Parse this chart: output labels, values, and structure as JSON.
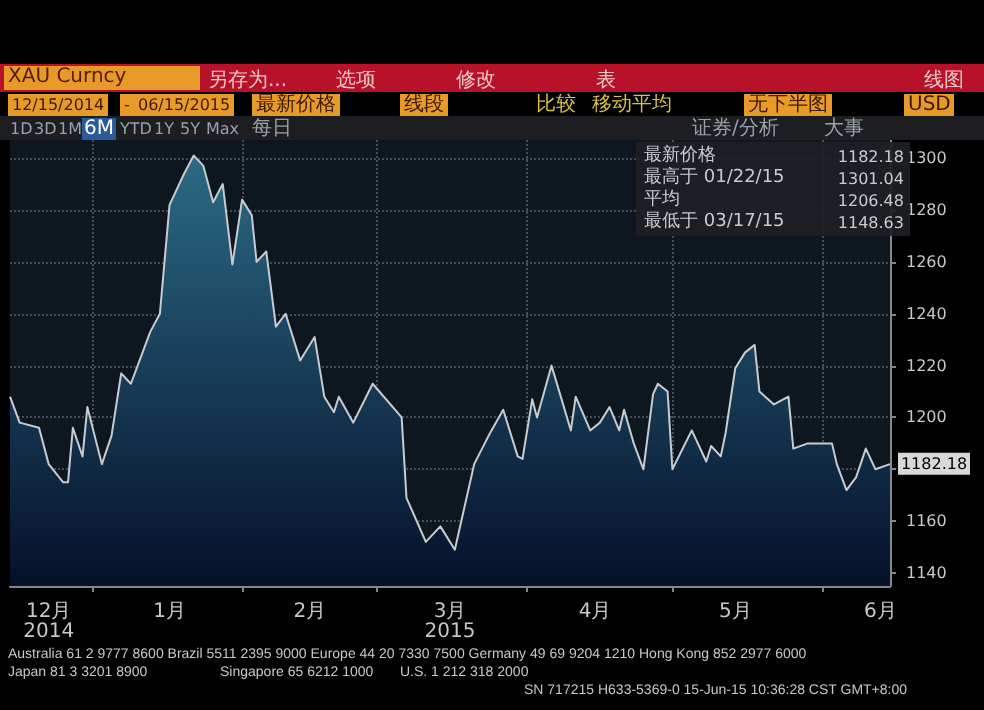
{
  "chart_data": {
    "type": "area",
    "title": "XAU Curncy",
    "x": [
      "2014-12-15",
      "2014-12-17",
      "2014-12-21",
      "2014-12-23",
      "2014-12-26",
      "2014-12-27",
      "2014-12-28",
      "2014-12-30",
      "2014-12-31",
      "2015-01-03",
      "2015-01-05",
      "2015-01-07",
      "2015-01-09",
      "2015-01-11",
      "2015-01-13",
      "2015-01-15",
      "2015-01-17",
      "2015-01-20",
      "2015-01-22",
      "2015-01-24",
      "2015-01-26",
      "2015-01-28",
      "2015-01-30",
      "2015-02-01",
      "2015-02-03",
      "2015-02-04",
      "2015-02-06",
      "2015-02-08",
      "2015-02-10",
      "2015-02-13",
      "2015-02-16",
      "2015-02-18",
      "2015-02-20",
      "2015-02-21",
      "2015-02-24",
      "2015-02-28",
      "2015-03-06",
      "2015-03-07",
      "2015-03-11",
      "2015-03-14",
      "2015-03-17",
      "2015-03-21",
      "2015-03-24",
      "2015-03-27",
      "2015-03-30",
      "2015-03-31",
      "2015-04-02",
      "2015-04-03",
      "2015-04-06",
      "2015-04-10",
      "2015-04-11",
      "2015-04-14",
      "2015-04-16",
      "2015-04-18",
      "2015-04-20",
      "2015-04-21",
      "2015-04-23",
      "2015-04-25",
      "2015-04-27",
      "2015-04-28",
      "2015-04-30",
      "2015-05-01",
      "2015-05-05",
      "2015-05-08",
      "2015-05-09",
      "2015-05-11",
      "2015-05-12",
      "2015-05-14",
      "2015-05-16",
      "2015-05-18",
      "2015-05-19",
      "2015-05-22",
      "2015-05-25",
      "2015-05-26",
      "2015-05-29",
      "2015-06-03",
      "2015-06-04",
      "2015-06-06",
      "2015-06-08",
      "2015-06-10",
      "2015-06-12",
      "2015-06-15"
    ],
    "series": [
      {
        "color": "#2b6a85",
        "values": [
          1208,
          1198,
          1196,
          1182,
          1175,
          1175,
          1196,
          1185,
          1204,
          1182,
          1193,
          1217,
          1213,
          1223,
          1233,
          1240,
          1282,
          1294,
          1301,
          1297,
          1283,
          1290,
          1259,
          1284,
          1278,
          1260,
          1264,
          1235,
          1240,
          1222,
          1231,
          1208,
          1202,
          1208,
          1198,
          1213,
          1200,
          1169,
          1152,
          1158,
          1149,
          1182,
          1193,
          1203,
          1185,
          1184,
          1207,
          1200,
          1220,
          1195,
          1208,
          1195,
          1198,
          1204,
          1195,
          1203,
          1190,
          1180,
          1209,
          1213,
          1210,
          1180,
          1195,
          1183,
          1189,
          1185,
          1194,
          1219,
          1225,
          1228,
          1210,
          1205,
          1208,
          1188,
          1190,
          1190,
          1182,
          1172,
          1177,
          1188,
          1180,
          1182
        ]
      }
    ],
    "xlim": [
      "2014-12-15",
      "2015-06-15"
    ],
    "xticks": [
      {
        "value": "2015-01-01",
        "label": null
      },
      {
        "value": "2015-02-01",
        "label": null
      },
      {
        "value": "2015-03-01",
        "label": null
      },
      {
        "value": "2015-04-01",
        "label": null
      },
      {
        "value": "2015-05-01",
        "label": null
      },
      {
        "value": "2015-06-01",
        "label": null
      },
      {
        "value": "2014-12-23",
        "label": "12月\n2014"
      },
      {
        "value": "2015-01-17",
        "label": "1月"
      },
      {
        "value": "2015-02-15",
        "label": "2月"
      },
      {
        "value": "2015-03-16",
        "label": "3月\n2015"
      },
      {
        "value": "2015-04-15",
        "label": "4月"
      },
      {
        "value": "2015-05-14",
        "label": "5月"
      },
      {
        "value": "2015-06-13",
        "label": "6月"
      }
    ],
    "ylim": [
      1135,
      1307
    ],
    "yticks": [
      1140,
      1160,
      {
        "value": 1180,
        "label": null
      },
      1200,
      1220,
      1240,
      1260,
      1280,
      1300
    ],
    "grid": true,
    "annotations": [
      "另存为...",
      "选项",
      "修改",
      "表",
      "线图",
      "12/15/2014",
      "-",
      "06/15/2015",
      "最新价格",
      "线段",
      "比较",
      "移动平均",
      "无下半图",
      "USD",
      "1D",
      "3D",
      "1M",
      "6M",
      "YTD",
      "1Y",
      "5Y",
      "Max",
      "每日",
      "证券/分析",
      "大事",
      "最新价格",
      "1182.18",
      "最高于 01/22/15",
      "1301.04",
      "平均",
      "1206.48",
      "最低于 03/17/15",
      "1148.63",
      "Australia 61 2 9777 8600 Brazil 5511 2395 9000 Europe 44 20 7330 7500 Germany 49 69 9204 1210 Hong Kong 852 2977 6000",
      "Japan 81 3 3201 8900",
      "Singapore 65 6212 1000",
      "U.S. 1 212 318 2000",
      "SN 717215 H633-5369-0 15-Jun-15 10:36:28 CST GMT+8:00",
      {
        "text": "1182.18",
        "x": "2015-06-15",
        "y": 1182.18
      }
    ]
  }
}
